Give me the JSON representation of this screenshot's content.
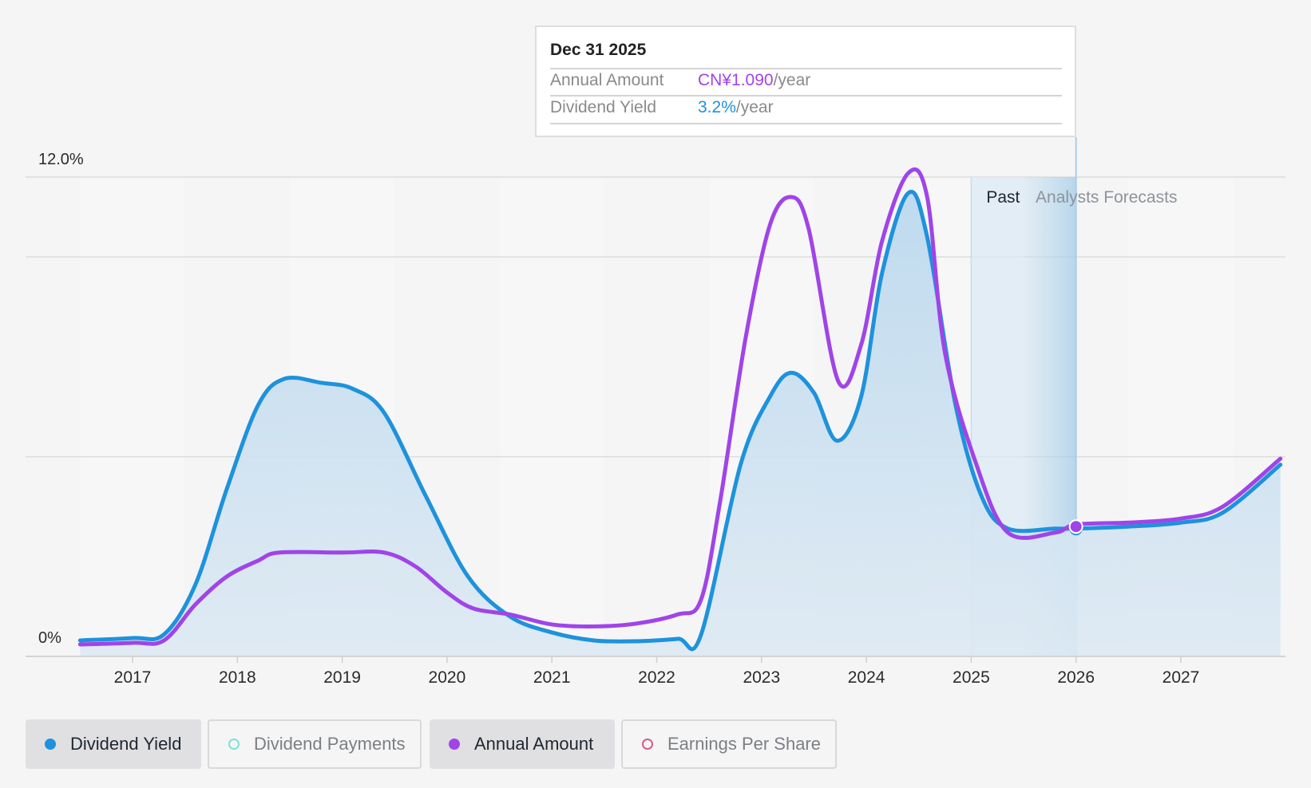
{
  "chart_data": {
    "type": "area",
    "y_axis": {
      "top_label": "12.0%",
      "bottom_label": "0%",
      "ylim": [
        0,
        12
      ]
    },
    "x_axis": {
      "tick_labels": [
        "2017",
        "2018",
        "2019",
        "2020",
        "2021",
        "2022",
        "2023",
        "2024",
        "2025",
        "2026",
        "2027"
      ],
      "xlim": [
        2016.5,
        2027.95
      ]
    },
    "regions": {
      "past_label": "Past",
      "forecast_label": "Analysts Forecasts",
      "past_start": 2025.0,
      "forecast_start": 2025.5,
      "forecast_end": 2026.0
    },
    "series": [
      {
        "name": "Dividend Yield",
        "color": "#1e92dc",
        "fill": true,
        "points": [
          [
            2016.5,
            0.4
          ],
          [
            2017.0,
            0.46
          ],
          [
            2017.3,
            0.55
          ],
          [
            2017.6,
            1.8
          ],
          [
            2017.9,
            4.2
          ],
          [
            2018.2,
            6.3
          ],
          [
            2018.45,
            6.95
          ],
          [
            2018.8,
            6.85
          ],
          [
            2019.1,
            6.7
          ],
          [
            2019.4,
            6.1
          ],
          [
            2019.8,
            4.0
          ],
          [
            2020.2,
            2.0
          ],
          [
            2020.6,
            1.0
          ],
          [
            2021.0,
            0.6
          ],
          [
            2021.4,
            0.4
          ],
          [
            2021.8,
            0.38
          ],
          [
            2022.2,
            0.44
          ],
          [
            2022.42,
            0.52
          ],
          [
            2022.8,
            4.8
          ],
          [
            2023.08,
            6.5
          ],
          [
            2023.28,
            7.1
          ],
          [
            2023.5,
            6.6
          ],
          [
            2023.72,
            5.4
          ],
          [
            2023.95,
            6.5
          ],
          [
            2024.15,
            9.6
          ],
          [
            2024.4,
            11.6
          ],
          [
            2024.58,
            10.5
          ],
          [
            2024.85,
            6.3
          ],
          [
            2025.1,
            4.0
          ],
          [
            2025.35,
            3.2
          ],
          [
            2025.8,
            3.2
          ],
          [
            2026.0,
            3.2
          ],
          [
            2026.5,
            3.25
          ],
          [
            2027.0,
            3.35
          ],
          [
            2027.4,
            3.6
          ],
          [
            2027.95,
            4.8
          ]
        ]
      },
      {
        "name": "Annual Amount",
        "color": "#a044e8",
        "fill": false,
        "points": [
          [
            2016.5,
            0.3
          ],
          [
            2017.0,
            0.34
          ],
          [
            2017.3,
            0.4
          ],
          [
            2017.6,
            1.3
          ],
          [
            2017.9,
            2.0
          ],
          [
            2018.2,
            2.4
          ],
          [
            2018.4,
            2.6
          ],
          [
            2019.0,
            2.6
          ],
          [
            2019.4,
            2.6
          ],
          [
            2019.7,
            2.25
          ],
          [
            2020.0,
            1.6
          ],
          [
            2020.25,
            1.2
          ],
          [
            2020.6,
            1.05
          ],
          [
            2021.0,
            0.8
          ],
          [
            2021.4,
            0.75
          ],
          [
            2021.8,
            0.82
          ],
          [
            2022.2,
            1.05
          ],
          [
            2022.42,
            1.4
          ],
          [
            2022.6,
            3.8
          ],
          [
            2022.85,
            8.0
          ],
          [
            2023.08,
            10.8
          ],
          [
            2023.28,
            11.5
          ],
          [
            2023.45,
            10.7
          ],
          [
            2023.73,
            6.9
          ],
          [
            2023.95,
            7.8
          ],
          [
            2024.15,
            10.4
          ],
          [
            2024.4,
            12.1
          ],
          [
            2024.58,
            11.5
          ],
          [
            2024.75,
            7.6
          ],
          [
            2025.05,
            4.8
          ],
          [
            2025.35,
            3.1
          ],
          [
            2025.8,
            3.1
          ],
          [
            2026.0,
            3.3
          ],
          [
            2026.5,
            3.35
          ],
          [
            2027.0,
            3.45
          ],
          [
            2027.4,
            3.75
          ],
          [
            2027.95,
            4.95
          ]
        ]
      }
    ],
    "tooltip": {
      "date": "Dec 31 2025",
      "rows": [
        {
          "label": "Annual Amount",
          "value": "CN¥1.090",
          "unit": "/year",
          "color": "#a044e8"
        },
        {
          "label": "Dividend Yield",
          "value": "3.2%",
          "unit": "/year",
          "color": "#1e92dc"
        }
      ],
      "x": 2026.0,
      "y": 3.25
    }
  },
  "legend": [
    {
      "label": "Dividend Yield",
      "color": "#1e92dc",
      "active": true,
      "hollow": false
    },
    {
      "label": "Dividend Payments",
      "color": "#7fe0d9",
      "active": false,
      "hollow": true
    },
    {
      "label": "Annual Amount",
      "color": "#a044e8",
      "active": true,
      "hollow": false
    },
    {
      "label": "Earnings Per Share",
      "color": "#d85a8f",
      "active": false,
      "hollow": true
    }
  ]
}
